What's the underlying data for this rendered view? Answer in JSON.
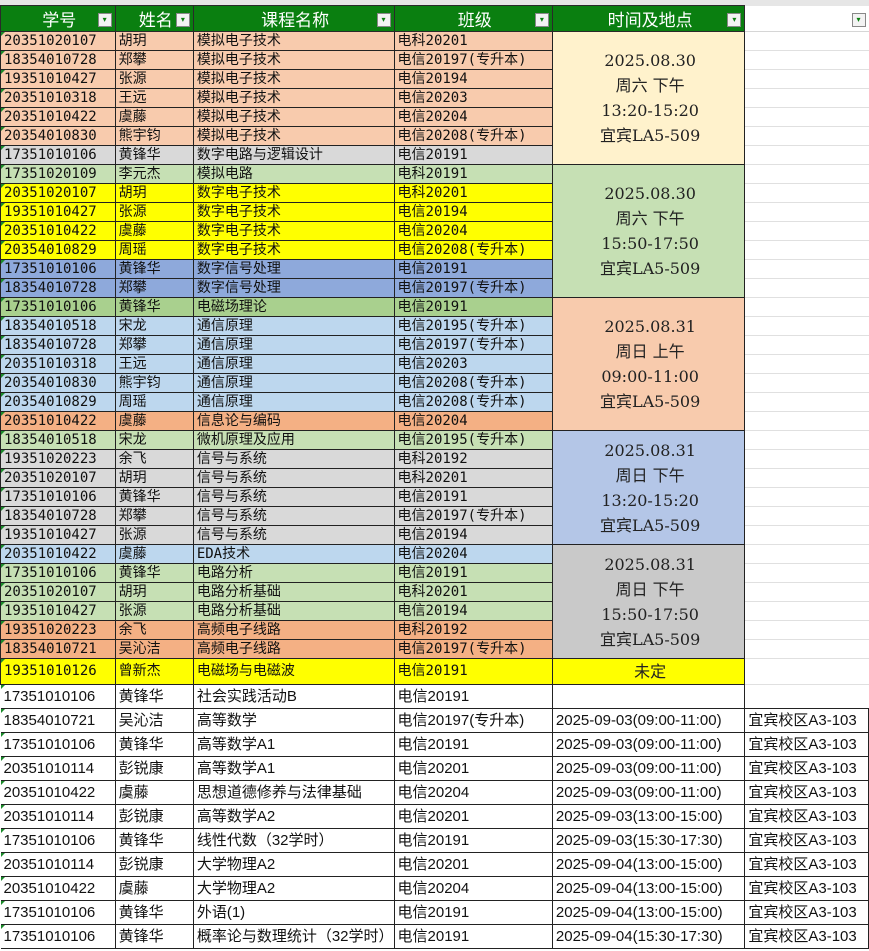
{
  "headers": [
    "学号",
    "姓名",
    "课程名称",
    "班级",
    "时间及地点",
    ""
  ],
  "groups": [
    {
      "slot": [
        "2025.08.30",
        "周六 下午",
        "13:20-15:20",
        "宜宾LA5-509"
      ],
      "fill": "#FFF2CC",
      "rows": [
        {
          "cells": [
            "20351020107",
            "胡玥",
            "模拟电子技术",
            "电科20201"
          ],
          "fill": "#F8CBAD"
        },
        {
          "cells": [
            "18354010728",
            "郑攀",
            "模拟电子技术",
            "电信20197(专升本)"
          ],
          "fill": "#F8CBAD"
        },
        {
          "cells": [
            "19351010427",
            "张源",
            "模拟电子技术",
            "电信20194"
          ],
          "fill": "#F8CBAD"
        },
        {
          "cells": [
            "20351010318",
            "王远",
            "模拟电子技术",
            "电信20203"
          ],
          "fill": "#F8CBAD"
        },
        {
          "cells": [
            "20351010422",
            "虞藤",
            "模拟电子技术",
            "电信20204"
          ],
          "fill": "#F8CBAD"
        },
        {
          "cells": [
            "20354010830",
            "熊宇钧",
            "模拟电子技术",
            "电信20208(专升本)"
          ],
          "fill": "#F8CBAD"
        },
        {
          "cells": [
            "17351010106",
            "黄锋华",
            "数字电路与逻辑设计",
            "电信20191"
          ],
          "fill": "#D9D9D9"
        }
      ]
    },
    {
      "slot": [
        "2025.08.30",
        "周六 下午",
        "15:50-17:50",
        "宜宾LA5-509"
      ],
      "fill": "#C6E0B4",
      "rows": [
        {
          "cells": [
            "17351020109",
            "李元杰",
            "模拟电路",
            "电科20191"
          ],
          "fill": "#C6E0B4"
        },
        {
          "cells": [
            "20351020107",
            "胡玥",
            "数字电子技术",
            "电科20201"
          ],
          "fill": "#FFFF00"
        },
        {
          "cells": [
            "19351010427",
            "张源",
            "数字电子技术",
            "电信20194"
          ],
          "fill": "#FFFF00"
        },
        {
          "cells": [
            "20351010422",
            "虞藤",
            "数字电子技术",
            "电信20204"
          ],
          "fill": "#FFFF00"
        },
        {
          "cells": [
            "20354010829",
            "周瑶",
            "数字电子技术",
            "电信20208(专升本)"
          ],
          "fill": "#FFFF00"
        },
        {
          "cells": [
            "17351010106",
            "黄锋华",
            "数字信号处理",
            "电信20191"
          ],
          "fill": "#8EA9DB"
        },
        {
          "cells": [
            "18354010728",
            "郑攀",
            "数字信号处理",
            "电信20197(专升本)"
          ],
          "fill": "#8EA9DB"
        }
      ]
    },
    {
      "slot": [
        "2025.08.31",
        "周日 上午",
        "09:00-11:00",
        "宜宾LA5-509"
      ],
      "fill": "#F8CBAD",
      "rows": [
        {
          "cells": [
            "17351010106",
            "黄锋华",
            "电磁场理论",
            "电信20191"
          ],
          "fill": "#A9D08E"
        },
        {
          "cells": [
            "18354010518",
            "宋龙",
            "通信原理",
            "电信20195(专升本)"
          ],
          "fill": "#BDD7EE"
        },
        {
          "cells": [
            "18354010728",
            "郑攀",
            "通信原理",
            "电信20197(专升本)"
          ],
          "fill": "#BDD7EE"
        },
        {
          "cells": [
            "20351010318",
            "王远",
            "通信原理",
            "电信20203"
          ],
          "fill": "#BDD7EE"
        },
        {
          "cells": [
            "20354010830",
            "熊宇钧",
            "通信原理",
            "电信20208(专升本)"
          ],
          "fill": "#BDD7EE"
        },
        {
          "cells": [
            "20354010829",
            "周瑶",
            "通信原理",
            "电信20208(专升本)"
          ],
          "fill": "#BDD7EE"
        },
        {
          "cells": [
            "20351010422",
            "虞藤",
            "信息论与编码",
            "电信20204"
          ],
          "fill": "#F4B084"
        }
      ]
    },
    {
      "slot": [
        "2025.08.31",
        "周日 下午",
        "13:20-15:20",
        "宜宾LA5-509"
      ],
      "fill": "#B4C6E7",
      "rows": [
        {
          "cells": [
            "18354010518",
            "宋龙",
            "微机原理及应用",
            "电信20195(专升本)"
          ],
          "fill": "#C6E0B4"
        },
        {
          "cells": [
            "19351020223",
            "余飞",
            "信号与系统",
            "电科20192"
          ],
          "fill": "#D9D9D9"
        },
        {
          "cells": [
            "20351020107",
            "胡玥",
            "信号与系统",
            "电科20201"
          ],
          "fill": "#D9D9D9"
        },
        {
          "cells": [
            "17351010106",
            "黄锋华",
            "信号与系统",
            "电信20191"
          ],
          "fill": "#D9D9D9"
        },
        {
          "cells": [
            "18354010728",
            "郑攀",
            "信号与系统",
            "电信20197(专升本)"
          ],
          "fill": "#D9D9D9"
        },
        {
          "cells": [
            "19351010427",
            "张源",
            "信号与系统",
            "电信20194"
          ],
          "fill": "#D9D9D9"
        }
      ]
    },
    {
      "slot": [
        "2025.08.31",
        "周日 下午",
        "15:50-17:50",
        "宜宾LA5-509"
      ],
      "fill": "#C9C9C9",
      "rows": [
        {
          "cells": [
            "20351010422",
            "虞藤",
            "EDA技术",
            "电信20204"
          ],
          "fill": "#BDD7EE"
        },
        {
          "cells": [
            "17351010106",
            "黄锋华",
            "电路分析",
            "电信20191"
          ],
          "fill": "#C6E0B4"
        },
        {
          "cells": [
            "20351020107",
            "胡玥",
            "电路分析基础",
            "电科20201"
          ],
          "fill": "#C6E0B4"
        },
        {
          "cells": [
            "19351010427",
            "张源",
            "电路分析基础",
            "电信20194"
          ],
          "fill": "#C6E0B4"
        },
        {
          "cells": [
            "19351020223",
            "余飞",
            "高频电子线路",
            "电科20192"
          ],
          "fill": "#F4B084"
        },
        {
          "cells": [
            "18354010721",
            "吴沁洁",
            "高频电子线路",
            "电信20197(专升本)"
          ],
          "fill": "#F4B084"
        }
      ]
    },
    {
      "slot": [
        "未定"
      ],
      "fill": "#FFFF00",
      "rows": [
        {
          "cells": [
            "19351010126",
            "曾新杰",
            "电磁场与电磁波",
            "电信20191"
          ],
          "fill": "#FFFF00"
        }
      ]
    }
  ],
  "other_rows": [
    [
      "17351010106",
      "黄锋华",
      "社会实践活动B",
      "电信20191",
      "",
      ""
    ],
    [
      "18354010721",
      "吴沁洁",
      "高等数学",
      "电信20197(专升本)",
      "2025-09-03(09:00-11:00)",
      "宜宾校区A3-103"
    ],
    [
      "17351010106",
      "黄锋华",
      "高等数学A1",
      "电信20191",
      "2025-09-03(09:00-11:00)",
      "宜宾校区A3-103"
    ],
    [
      "20351010114",
      "彭锐康",
      "高等数学A1",
      "电信20201",
      "2025-09-03(09:00-11:00)",
      "宜宾校区A3-103"
    ],
    [
      "20351010422",
      "虞藤",
      "思想道德修养与法律基础",
      "电信20204",
      "2025-09-03(09:00-11:00)",
      "宜宾校区A3-103"
    ],
    [
      "20351010114",
      "彭锐康",
      "高等数学A2",
      "电信20201",
      "2025-09-03(13:00-15:00)",
      "宜宾校区A3-103"
    ],
    [
      "17351010106",
      "黄锋华",
      "线性代数（32学时）",
      "电信20191",
      "2025-09-03(15:30-17:30)",
      "宜宾校区A3-103"
    ],
    [
      "20351010114",
      "彭锐康",
      "大学物理A2",
      "电信20201",
      "2025-09-04(13:00-15:00)",
      "宜宾校区A3-103"
    ],
    [
      "20351010422",
      "虞藤",
      "大学物理A2",
      "电信20204",
      "2025-09-04(13:00-15:00)",
      "宜宾校区A3-103"
    ],
    [
      "17351010106",
      "黄锋华",
      "外语(1)",
      "电信20191",
      "2025-09-04(13:00-15:00)",
      "宜宾校区A3-103"
    ],
    [
      "17351010106",
      "黄锋华",
      "概率论与数理统计（32学时）",
      "电信20191",
      "2025-09-04(15:30-17:30)",
      "宜宾校区A3-103"
    ]
  ],
  "colors": {
    "header": "#0A7F10",
    "header_text": "#FFFFFF"
  }
}
